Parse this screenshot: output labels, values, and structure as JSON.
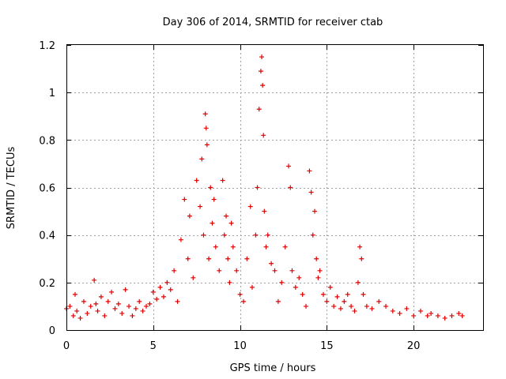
{
  "chart_data": {
    "type": "scatter",
    "title": "Day 306 of 2014, SRMTID for receiver ctab",
    "xlabel": "GPS time / hours",
    "ylabel": "SRMTID / TECUs",
    "xlim": [
      0,
      24
    ],
    "ylim": [
      0,
      1.2
    ],
    "x_ticks": [
      0,
      5,
      10,
      15,
      20
    ],
    "x_tick_labels": [
      "0",
      "5",
      "10",
      "15",
      "20"
    ],
    "y_ticks": [
      0,
      0.2,
      0.4,
      0.6,
      0.8,
      1,
      1.2
    ],
    "y_tick_labels": [
      "0",
      "0.2",
      "0.4",
      "0.6",
      "0.8",
      "1",
      "1.2"
    ],
    "grid": true,
    "marker": "+",
    "marker_color": "#e00000",
    "series": [
      {
        "name": "SRMTID",
        "x": [
          0.0,
          0.2,
          0.4,
          0.5,
          0.6,
          0.8,
          1.0,
          1.2,
          1.4,
          1.6,
          1.7,
          1.8,
          2.0,
          2.2,
          2.4,
          2.6,
          2.8,
          3.0,
          3.2,
          3.4,
          3.6,
          3.8,
          4.0,
          4.2,
          4.4,
          4.6,
          4.8,
          5.0,
          5.2,
          5.4,
          5.6,
          5.8,
          6.0,
          6.2,
          6.4,
          6.6,
          6.8,
          7.0,
          7.1,
          7.3,
          7.5,
          7.7,
          7.8,
          7.9,
          8.0,
          8.05,
          8.1,
          8.2,
          8.3,
          8.4,
          8.5,
          8.6,
          8.8,
          9.0,
          9.1,
          9.2,
          9.3,
          9.4,
          9.5,
          9.6,
          9.8,
          10.0,
          10.2,
          10.4,
          10.6,
          10.7,
          10.9,
          11.0,
          11.1,
          11.2,
          11.25,
          11.3,
          11.35,
          11.4,
          11.5,
          11.6,
          11.8,
          12.0,
          12.2,
          12.4,
          12.6,
          12.8,
          12.9,
          13.0,
          13.2,
          13.4,
          13.6,
          13.8,
          14.0,
          14.1,
          14.2,
          14.3,
          14.4,
          14.5,
          14.6,
          14.8,
          15.0,
          15.2,
          15.4,
          15.6,
          15.8,
          16.0,
          16.2,
          16.4,
          16.6,
          16.8,
          16.9,
          17.0,
          17.1,
          17.3,
          17.6,
          18.0,
          18.4,
          18.8,
          19.2,
          19.6,
          20.0,
          20.4,
          20.8,
          21.0,
          21.4,
          21.8,
          22.2,
          22.6,
          22.8
        ],
        "y": [
          0.09,
          0.1,
          0.06,
          0.15,
          0.08,
          0.05,
          0.12,
          0.07,
          0.1,
          0.21,
          0.11,
          0.08,
          0.14,
          0.06,
          0.12,
          0.16,
          0.09,
          0.11,
          0.07,
          0.17,
          0.1,
          0.06,
          0.09,
          0.12,
          0.08,
          0.1,
          0.11,
          0.16,
          0.13,
          0.18,
          0.14,
          0.2,
          0.17,
          0.25,
          0.12,
          0.38,
          0.55,
          0.3,
          0.48,
          0.22,
          0.63,
          0.52,
          0.72,
          0.4,
          0.91,
          0.85,
          0.78,
          0.3,
          0.6,
          0.45,
          0.55,
          0.35,
          0.25,
          0.63,
          0.4,
          0.48,
          0.3,
          0.2,
          0.45,
          0.35,
          0.25,
          0.15,
          0.12,
          0.3,
          0.52,
          0.18,
          0.4,
          0.6,
          0.93,
          1.09,
          1.15,
          1.03,
          0.82,
          0.5,
          0.35,
          0.4,
          0.28,
          0.25,
          0.12,
          0.2,
          0.35,
          0.69,
          0.6,
          0.25,
          0.18,
          0.22,
          0.15,
          0.1,
          0.67,
          0.58,
          0.4,
          0.5,
          0.3,
          0.22,
          0.25,
          0.15,
          0.12,
          0.18,
          0.1,
          0.14,
          0.09,
          0.12,
          0.15,
          0.1,
          0.08,
          0.2,
          0.35,
          0.3,
          0.15,
          0.1,
          0.09,
          0.12,
          0.1,
          0.08,
          0.07,
          0.09,
          0.06,
          0.08,
          0.06,
          0.07,
          0.06,
          0.05,
          0.06,
          0.07,
          0.06
        ]
      }
    ]
  }
}
